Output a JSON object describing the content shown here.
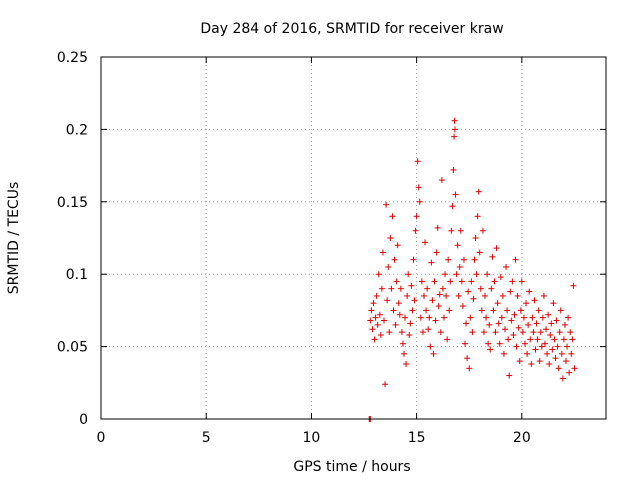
{
  "chart_data": {
    "type": "scatter",
    "title": "Day 284 of 2016, SRMTID for receiver kraw",
    "xlabel": "GPS time / hours",
    "ylabel": "SRMTID / TECUs",
    "xlim": [
      0,
      24
    ],
    "ylim": [
      0,
      0.25
    ],
    "xticks": [
      0,
      5,
      10,
      15,
      20
    ],
    "yticks": [
      0,
      0.05,
      0.1,
      0.15,
      0.2,
      0.25
    ],
    "xtick_labels": [
      "0",
      "5",
      "10",
      "15",
      "20"
    ],
    "ytick_labels": [
      "0",
      "0.05",
      "0.1",
      "0.15",
      "0.2",
      "0.25"
    ],
    "grid": true,
    "marker": "+",
    "marker_color": "#e00000",
    "series": [
      {
        "name": "SRMTID",
        "color": "#e00000",
        "points": [
          [
            12.75,
            0.0
          ],
          [
            12.78,
            0.0
          ],
          [
            12.8,
            0.0
          ],
          [
            12.8,
            0.068
          ],
          [
            12.85,
            0.075
          ],
          [
            12.9,
            0.062
          ],
          [
            12.95,
            0.08
          ],
          [
            13.0,
            0.055
          ],
          [
            13.05,
            0.07
          ],
          [
            13.1,
            0.085
          ],
          [
            13.15,
            0.065
          ],
          [
            13.2,
            0.1
          ],
          [
            13.25,
            0.072
          ],
          [
            13.3,
            0.058
          ],
          [
            13.35,
            0.09
          ],
          [
            13.4,
            0.115
          ],
          [
            13.45,
            0.068
          ],
          [
            13.5,
            0.024
          ],
          [
            13.55,
            0.148
          ],
          [
            13.6,
            0.082
          ],
          [
            13.65,
            0.105
          ],
          [
            13.7,
            0.06
          ],
          [
            13.75,
            0.125
          ],
          [
            13.8,
            0.09
          ],
          [
            13.85,
            0.14
          ],
          [
            13.9,
            0.075
          ],
          [
            13.95,
            0.11
          ],
          [
            14.0,
            0.065
          ],
          [
            14.05,
            0.095
          ],
          [
            14.1,
            0.12
          ],
          [
            14.15,
            0.08
          ],
          [
            14.2,
            0.072
          ],
          [
            14.25,
            0.09
          ],
          [
            14.3,
            0.06
          ],
          [
            14.35,
            0.052
          ],
          [
            14.4,
            0.045
          ],
          [
            14.45,
            0.07
          ],
          [
            14.5,
            0.038
          ],
          [
            14.55,
            0.085
          ],
          [
            14.6,
            0.1
          ],
          [
            14.65,
            0.058
          ],
          [
            14.7,
            0.066
          ],
          [
            14.75,
            0.092
          ],
          [
            14.8,
            0.075
          ],
          [
            14.85,
            0.11
          ],
          [
            14.9,
            0.082
          ],
          [
            14.95,
            0.13
          ],
          [
            15.0,
            0.14
          ],
          [
            15.05,
            0.178
          ],
          [
            15.1,
            0.16
          ],
          [
            15.15,
            0.15
          ],
          [
            15.2,
            0.07
          ],
          [
            15.25,
            0.095
          ],
          [
            15.3,
            0.06
          ],
          [
            15.35,
            0.085
          ],
          [
            15.4,
            0.122
          ],
          [
            15.45,
            0.075
          ],
          [
            15.5,
            0.09
          ],
          [
            15.55,
            0.062
          ],
          [
            15.6,
            0.07
          ],
          [
            15.65,
            0.05
          ],
          [
            15.7,
            0.108
          ],
          [
            15.75,
            0.082
          ],
          [
            15.8,
            0.045
          ],
          [
            15.85,
            0.095
          ],
          [
            15.9,
            0.068
          ],
          [
            15.95,
            0.115
          ],
          [
            16.0,
            0.132
          ],
          [
            16.05,
            0.078
          ],
          [
            16.1,
            0.086
          ],
          [
            16.15,
            0.06
          ],
          [
            16.2,
            0.165
          ],
          [
            16.25,
            0.09
          ],
          [
            16.3,
            0.07
          ],
          [
            16.35,
            0.1
          ],
          [
            16.4,
            0.085
          ],
          [
            16.45,
            0.055
          ],
          [
            16.5,
            0.11
          ],
          [
            16.55,
            0.075
          ],
          [
            16.6,
            0.095
          ],
          [
            16.65,
            0.13
          ],
          [
            16.7,
            0.147
          ],
          [
            16.75,
            0.172
          ],
          [
            16.78,
            0.195
          ],
          [
            16.8,
            0.206
          ],
          [
            16.82,
            0.2
          ],
          [
            16.85,
            0.155
          ],
          [
            16.9,
            0.1
          ],
          [
            16.95,
            0.12
          ],
          [
            17.0,
            0.085
          ],
          [
            17.05,
            0.105
          ],
          [
            17.1,
            0.13
          ],
          [
            17.15,
            0.095
          ],
          [
            17.2,
            0.078
          ],
          [
            17.25,
            0.11
          ],
          [
            17.3,
            0.052
          ],
          [
            17.35,
            0.066
          ],
          [
            17.4,
            0.042
          ],
          [
            17.45,
            0.088
          ],
          [
            17.5,
            0.035
          ],
          [
            17.55,
            0.07
          ],
          [
            17.6,
            0.095
          ],
          [
            17.65,
            0.06
          ],
          [
            17.7,
            0.083
          ],
          [
            17.75,
            0.11
          ],
          [
            17.8,
            0.125
          ],
          [
            17.85,
            0.1
          ],
          [
            17.9,
            0.14
          ],
          [
            17.95,
            0.157
          ],
          [
            18.0,
            0.115
          ],
          [
            18.05,
            0.09
          ],
          [
            18.1,
            0.075
          ],
          [
            18.15,
            0.13
          ],
          [
            18.2,
            0.06
          ],
          [
            18.25,
            0.085
          ],
          [
            18.3,
            0.07
          ],
          [
            18.35,
            0.1
          ],
          [
            18.4,
            0.052
          ],
          [
            18.45,
            0.065
          ],
          [
            18.5,
            0.048
          ],
          [
            18.55,
            0.09
          ],
          [
            18.6,
            0.112
          ],
          [
            18.65,
            0.075
          ],
          [
            18.7,
            0.095
          ],
          [
            18.75,
            0.06
          ],
          [
            18.8,
            0.118
          ],
          [
            18.85,
            0.08
          ],
          [
            18.9,
            0.066
          ],
          [
            18.95,
            0.052
          ],
          [
            19.0,
            0.098
          ],
          [
            19.05,
            0.07
          ],
          [
            19.1,
            0.085
          ],
          [
            19.15,
            0.045
          ],
          [
            19.2,
            0.062
          ],
          [
            19.25,
            0.105
          ],
          [
            19.3,
            0.075
          ],
          [
            19.35,
            0.055
          ],
          [
            19.4,
            0.03
          ],
          [
            19.45,
            0.088
          ],
          [
            19.5,
            0.068
          ],
          [
            19.55,
            0.095
          ],
          [
            19.6,
            0.058
          ],
          [
            19.65,
            0.072
          ],
          [
            19.7,
            0.11
          ],
          [
            19.75,
            0.05
          ],
          [
            19.8,
            0.085
          ],
          [
            19.85,
            0.063
          ],
          [
            19.9,
            0.04
          ],
          [
            19.95,
            0.075
          ],
          [
            20.0,
            0.095
          ],
          [
            20.05,
            0.06
          ],
          [
            20.1,
            0.07
          ],
          [
            20.15,
            0.052
          ],
          [
            20.2,
            0.08
          ],
          [
            20.25,
            0.045
          ],
          [
            20.3,
            0.065
          ],
          [
            20.35,
            0.088
          ],
          [
            20.4,
            0.055
          ],
          [
            20.45,
            0.038
          ],
          [
            20.5,
            0.07
          ],
          [
            20.55,
            0.06
          ],
          [
            20.6,
            0.082
          ],
          [
            20.65,
            0.048
          ],
          [
            20.7,
            0.066
          ],
          [
            20.75,
            0.055
          ],
          [
            20.8,
            0.075
          ],
          [
            20.85,
            0.04
          ],
          [
            20.9,
            0.06
          ],
          [
            20.95,
            0.05
          ],
          [
            21.0,
            0.07
          ],
          [
            21.05,
            0.085
          ],
          [
            21.1,
            0.052
          ],
          [
            21.15,
            0.062
          ],
          [
            21.2,
            0.045
          ],
          [
            21.25,
            0.072
          ],
          [
            21.3,
            0.038
          ],
          [
            21.35,
            0.058
          ],
          [
            21.4,
            0.066
          ],
          [
            21.45,
            0.048
          ],
          [
            21.5,
            0.08
          ],
          [
            21.55,
            0.055
          ],
          [
            21.6,
            0.042
          ],
          [
            21.65,
            0.068
          ],
          [
            21.7,
            0.05
          ],
          [
            21.75,
            0.035
          ],
          [
            21.8,
            0.06
          ],
          [
            21.85,
            0.075
          ],
          [
            21.9,
            0.045
          ],
          [
            21.95,
            0.028
          ],
          [
            22.0,
            0.055
          ],
          [
            22.05,
            0.065
          ],
          [
            22.1,
            0.04
          ],
          [
            22.15,
            0.05
          ],
          [
            22.2,
            0.07
          ],
          [
            22.25,
            0.032
          ],
          [
            22.3,
            0.06
          ],
          [
            22.35,
            0.045
          ],
          [
            22.4,
            0.055
          ],
          [
            22.45,
            0.092
          ],
          [
            22.5,
            0.035
          ]
        ]
      }
    ]
  }
}
